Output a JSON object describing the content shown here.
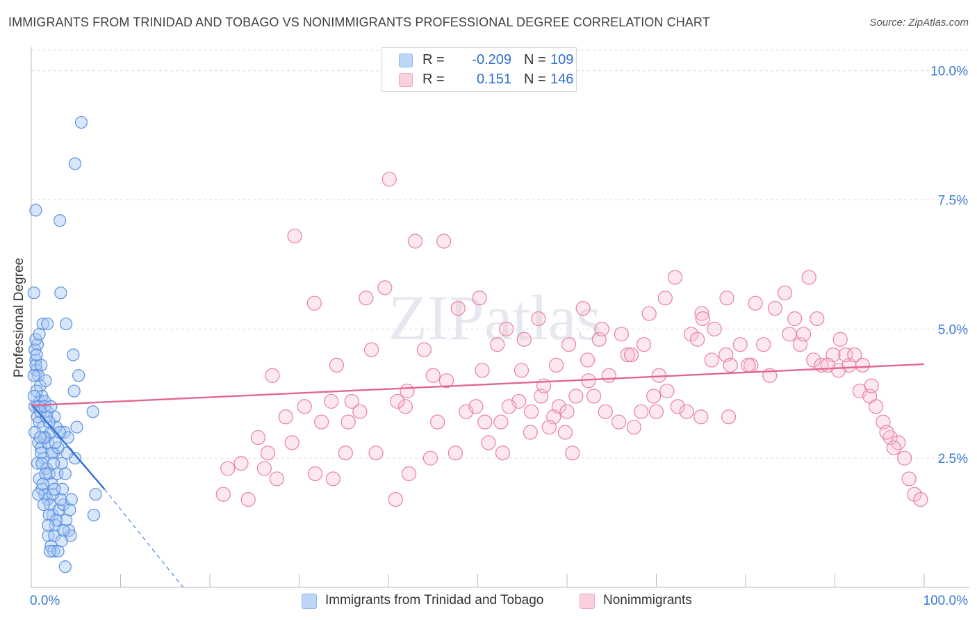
{
  "title": "IMMIGRANTS FROM TRINIDAD AND TOBAGO VS NONIMMIGRANTS PROFESSIONAL DEGREE CORRELATION CHART",
  "source": "Source: ZipAtlas.com",
  "watermark": "ZIPatlas",
  "legend": {
    "rows": [
      {
        "r_label": "R =",
        "r_value": "-0.209",
        "n_label": "N =",
        "n_value": "109",
        "color": "#8fb8ef"
      },
      {
        "r_label": "R =",
        "r_value": "0.151",
        "n_label": "N =",
        "n_value": "146",
        "color": "#f3a7c0"
      }
    ]
  },
  "chart_data": {
    "type": "scatter",
    "ylabel": "Professional Degree",
    "xlabel": "",
    "x_ticks": [
      "0.0%",
      "100.0%"
    ],
    "y_ticks": [
      "2.5%",
      "5.0%",
      "7.5%",
      "10.0%"
    ],
    "xlim": [
      0,
      100
    ],
    "ylim": [
      0,
      10.4
    ],
    "grid": true,
    "legend_position": "top-center",
    "colors": {
      "blue": "#4a86e0",
      "blue_fill": "#a9c8f3",
      "pink": "#e8739d",
      "pink_fill": "#f7bccf"
    },
    "series": [
      {
        "name": "Immigrants from Trinidad and Tobago",
        "trend": {
          "x": [
            0,
            8.2
          ],
          "y": [
            3.55,
            1.9
          ],
          "dashed_extension_to": [
            17,
            0
          ]
        },
        "points": [
          [
            0.3,
            5.7
          ],
          [
            0.4,
            4.6
          ],
          [
            0.5,
            4.4
          ],
          [
            0.6,
            4.2
          ],
          [
            0.7,
            4.7
          ],
          [
            0.8,
            4.1
          ],
          [
            0.5,
            4.3
          ],
          [
            0.9,
            3.6
          ],
          [
            0.4,
            3.5
          ],
          [
            0.7,
            3.3
          ],
          [
            1.0,
            3.9
          ],
          [
            1.2,
            3.7
          ],
          [
            1.5,
            3.6
          ],
          [
            1.8,
            3.4
          ],
          [
            0.9,
            3.2
          ],
          [
            1.3,
            3.1
          ],
          [
            1.6,
            2.9
          ],
          [
            0.8,
            2.8
          ],
          [
            1.1,
            2.7
          ],
          [
            1.9,
            2.8
          ],
          [
            2.2,
            3.0
          ],
          [
            2.5,
            2.6
          ],
          [
            1.4,
            2.5
          ],
          [
            1.7,
            2.3
          ],
          [
            2.0,
            2.2
          ],
          [
            2.3,
            2.0
          ],
          [
            1.2,
            1.9
          ],
          [
            1.5,
            1.8
          ],
          [
            1.8,
            1.7
          ],
          [
            2.1,
            1.6
          ],
          [
            2.4,
            1.4
          ],
          [
            2.7,
            1.2
          ],
          [
            1.9,
            1.0
          ],
          [
            2.2,
            0.8
          ],
          [
            2.5,
            0.7
          ],
          [
            3.1,
            1.5
          ],
          [
            3.4,
            2.4
          ],
          [
            3.7,
            3.0
          ],
          [
            0.5,
            7.3
          ],
          [
            3.2,
            7.1
          ],
          [
            5.6,
            9.0
          ],
          [
            4.9,
            8.2
          ],
          [
            3.3,
            5.7
          ],
          [
            1.3,
            5.1
          ],
          [
            1.8,
            5.1
          ],
          [
            3.9,
            5.1
          ],
          [
            4.7,
            4.5
          ],
          [
            5.3,
            4.1
          ],
          [
            4.8,
            3.8
          ],
          [
            5.1,
            3.1
          ],
          [
            4.9,
            2.5
          ],
          [
            6.9,
            3.4
          ],
          [
            7.2,
            1.8
          ],
          [
            7.0,
            1.4
          ],
          [
            3.6,
            1.6
          ],
          [
            3.9,
            1.3
          ],
          [
            4.2,
            1.1
          ],
          [
            4.4,
            1.0
          ],
          [
            3.8,
            0.4
          ],
          [
            3.0,
            0.7
          ],
          [
            2.6,
            1.0
          ],
          [
            2.0,
            1.4
          ],
          [
            2.9,
            2.2
          ],
          [
            2.6,
            3.3
          ],
          [
            2.8,
            3.1
          ],
          [
            0.6,
            3.8
          ],
          [
            0.8,
            3.5
          ],
          [
            1.0,
            3.4
          ],
          [
            1.4,
            2.9
          ],
          [
            0.9,
            2.1
          ],
          [
            1.1,
            2.6
          ],
          [
            1.6,
            2.2
          ],
          [
            2.3,
            2.6
          ],
          [
            0.3,
            4.1
          ],
          [
            0.5,
            4.8
          ],
          [
            1.1,
            4.3
          ],
          [
            1.6,
            4.0
          ],
          [
            0.4,
            3.0
          ],
          [
            0.7,
            2.4
          ],
          [
            1.3,
            2.0
          ],
          [
            3.5,
            1.9
          ],
          [
            4.0,
            2.6
          ],
          [
            4.5,
            1.7
          ],
          [
            2.8,
            1.3
          ],
          [
            3.3,
            1.7
          ],
          [
            2.0,
            3.2
          ],
          [
            2.4,
            1.8
          ],
          [
            3.0,
            2.7
          ],
          [
            1.7,
            3.3
          ],
          [
            0.9,
            4.9
          ],
          [
            0.6,
            4.5
          ],
          [
            2.5,
            2.4
          ],
          [
            3.6,
            1.1
          ],
          [
            4.1,
            2.9
          ],
          [
            1.5,
            3.5
          ],
          [
            0.3,
            3.7
          ],
          [
            2.7,
            2.8
          ],
          [
            3.2,
            3.0
          ],
          [
            1.2,
            2.4
          ],
          [
            1.9,
            1.2
          ],
          [
            2.1,
            0.7
          ],
          [
            3.4,
            0.9
          ],
          [
            0.8,
            1.8
          ],
          [
            1.4,
            1.6
          ],
          [
            2.6,
            1.9
          ],
          [
            3.8,
            2.2
          ],
          [
            4.3,
            1.5
          ],
          [
            1.0,
            2.9
          ],
          [
            2.2,
            3.5
          ]
        ]
      },
      {
        "name": "Nonimmigrants",
        "trend": {
          "x": [
            0,
            100
          ],
          "y": [
            3.52,
            4.32
          ]
        },
        "points": [
          [
            40.1,
            7.9
          ],
          [
            29.5,
            6.8
          ],
          [
            43.0,
            6.7
          ],
          [
            46.2,
            6.7
          ],
          [
            31.7,
            5.5
          ],
          [
            37.5,
            5.6
          ],
          [
            39.6,
            5.8
          ],
          [
            47.8,
            5.4
          ],
          [
            50.2,
            5.6
          ],
          [
            53.2,
            5.0
          ],
          [
            56.8,
            5.2
          ],
          [
            52.2,
            4.7
          ],
          [
            50.5,
            4.2
          ],
          [
            48.7,
            3.4
          ],
          [
            46.5,
            4.0
          ],
          [
            42.1,
            3.8
          ],
          [
            44.0,
            4.6
          ],
          [
            45.5,
            3.2
          ],
          [
            41.9,
            3.5
          ],
          [
            38.1,
            4.6
          ],
          [
            35.9,
            3.6
          ],
          [
            35.5,
            3.2
          ],
          [
            34.2,
            4.3
          ],
          [
            32.5,
            3.2
          ],
          [
            30.6,
            3.5
          ],
          [
            28.5,
            3.3
          ],
          [
            27.0,
            4.1
          ],
          [
            26.1,
            2.3
          ],
          [
            26.5,
            2.6
          ],
          [
            27.5,
            2.1
          ],
          [
            24.3,
            1.7
          ],
          [
            21.5,
            1.8
          ],
          [
            31.8,
            2.2
          ],
          [
            33.8,
            2.1
          ],
          [
            35.2,
            2.6
          ],
          [
            38.6,
            2.6
          ],
          [
            40.8,
            1.7
          ],
          [
            42.3,
            2.2
          ],
          [
            44.7,
            2.5
          ],
          [
            47.5,
            2.6
          ],
          [
            49.8,
            3.5
          ],
          [
            51.2,
            2.8
          ],
          [
            52.8,
            2.6
          ],
          [
            54.6,
            3.6
          ],
          [
            55.9,
            3.0
          ],
          [
            57.1,
            3.7
          ],
          [
            58.5,
            3.3
          ],
          [
            59.8,
            3.0
          ],
          [
            60.6,
            2.6
          ],
          [
            62.3,
            4.4
          ],
          [
            63.6,
            4.8
          ],
          [
            64.7,
            4.1
          ],
          [
            66.8,
            4.5
          ],
          [
            68.3,
            3.4
          ],
          [
            69.7,
            3.7
          ],
          [
            71.2,
            3.8
          ],
          [
            72.4,
            3.5
          ],
          [
            73.9,
            4.9
          ],
          [
            75.1,
            5.3
          ],
          [
            76.5,
            5.0
          ],
          [
            77.8,
            4.5
          ],
          [
            79.4,
            4.7
          ],
          [
            80.6,
            4.3
          ],
          [
            82.0,
            4.7
          ],
          [
            83.3,
            5.4
          ],
          [
            84.9,
            4.9
          ],
          [
            86.1,
            4.7
          ],
          [
            87.6,
            4.4
          ],
          [
            88.5,
            4.3
          ],
          [
            89.8,
            4.5
          ],
          [
            90.4,
            4.2
          ],
          [
            91.6,
            4.3
          ],
          [
            92.8,
            3.8
          ],
          [
            93.9,
            3.7
          ],
          [
            94.6,
            3.5
          ],
          [
            95.4,
            3.2
          ],
          [
            96.2,
            2.9
          ],
          [
            97.1,
            2.8
          ],
          [
            97.8,
            2.5
          ],
          [
            98.3,
            2.1
          ],
          [
            98.9,
            1.8
          ],
          [
            99.6,
            1.7
          ],
          [
            93.1,
            4.3
          ],
          [
            91.2,
            4.5
          ],
          [
            89.2,
            4.3
          ],
          [
            87.1,
            6.0
          ],
          [
            84.4,
            5.7
          ],
          [
            81.1,
            5.5
          ],
          [
            77.9,
            5.6
          ],
          [
            75.2,
            5.2
          ],
          [
            72.1,
            6.0
          ],
          [
            71.0,
            5.6
          ],
          [
            69.2,
            5.3
          ],
          [
            68.6,
            4.7
          ],
          [
            66.1,
            4.9
          ],
          [
            63.9,
            5.0
          ],
          [
            61.8,
            5.4
          ],
          [
            60.2,
            4.7
          ],
          [
            58.8,
            4.3
          ],
          [
            57.4,
            3.9
          ],
          [
            55.2,
            4.8
          ],
          [
            53.5,
            3.5
          ],
          [
            52.6,
            3.2
          ],
          [
            54.9,
            4.2
          ],
          [
            56.0,
            3.4
          ],
          [
            59.1,
            3.5
          ],
          [
            61.0,
            3.7
          ],
          [
            64.3,
            3.4
          ],
          [
            67.2,
            4.5
          ],
          [
            70.3,
            4.1
          ],
          [
            73.4,
            3.4
          ],
          [
            74.6,
            4.8
          ],
          [
            76.2,
            4.4
          ],
          [
            78.3,
            4.3
          ],
          [
            80.3,
            4.3
          ],
          [
            82.7,
            4.1
          ],
          [
            85.5,
            5.2
          ],
          [
            86.5,
            4.9
          ],
          [
            88.0,
            5.2
          ],
          [
            90.6,
            4.8
          ],
          [
            94.1,
            3.9
          ],
          [
            95.8,
            3.0
          ],
          [
            92.2,
            4.5
          ],
          [
            96.6,
            2.7
          ],
          [
            65.8,
            3.2
          ],
          [
            67.5,
            3.1
          ],
          [
            70.0,
            3.4
          ],
          [
            75.0,
            3.3
          ],
          [
            78.1,
            3.3
          ],
          [
            62.4,
            4.0
          ],
          [
            63.0,
            3.7
          ],
          [
            60.0,
            3.4
          ],
          [
            58.0,
            3.1
          ],
          [
            50.8,
            3.2
          ],
          [
            45.0,
            4.1
          ],
          [
            41.0,
            3.6
          ],
          [
            36.8,
            3.4
          ],
          [
            33.6,
            3.6
          ],
          [
            29.2,
            2.8
          ],
          [
            23.5,
            2.4
          ],
          [
            22.0,
            2.3
          ],
          [
            25.4,
            2.9
          ]
        ]
      }
    ]
  }
}
